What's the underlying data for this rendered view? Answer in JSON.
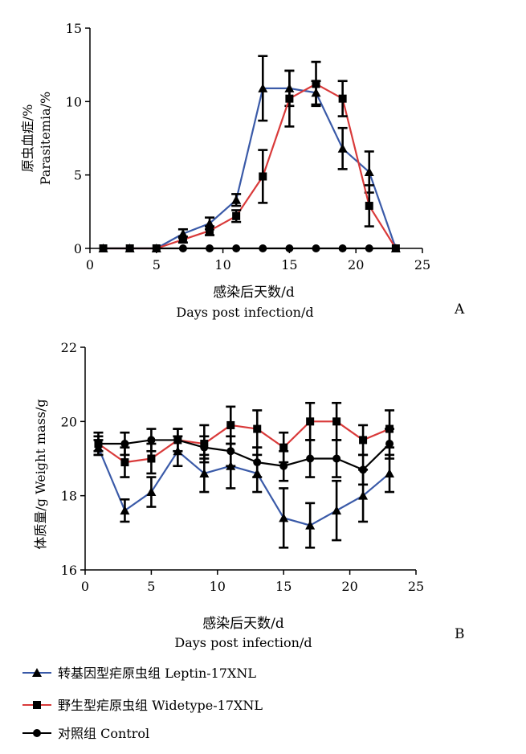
{
  "chart_data": [
    {
      "type": "line",
      "panel_label": "A",
      "xlabel_cn": "感染后天数/d",
      "xlabel_en": "Days post infection/d",
      "ylabel_cn": "原虫血症/%",
      "ylabel_en": "Parasitemia/%",
      "xlim": [
        0,
        25
      ],
      "ylim": [
        0,
        15
      ],
      "xticks": [
        "0",
        "5",
        "10",
        "15",
        "20",
        "25"
      ],
      "yticks": [
        "0",
        "5",
        "10",
        "15"
      ],
      "grid": false,
      "series": [
        {
          "name": "转基因型疟原虫组 Leptin-17XNL",
          "color": "#3a5aa8",
          "marker": "triangle",
          "x": [
            1,
            3,
            5,
            7,
            9,
            11,
            13,
            15,
            17,
            19,
            21,
            23
          ],
          "y": [
            0,
            0,
            0,
            1.0,
            1.7,
            3.3,
            10.9,
            10.9,
            10.6,
            6.8,
            5.2,
            0
          ],
          "err": [
            0,
            0,
            0,
            0.3,
            0.4,
            0.4,
            2.2,
            1.2,
            0.8,
            1.4,
            1.4,
            0
          ]
        },
        {
          "name": "野生型疟原虫组 Widetype-17XNL",
          "color": "#d93a3a",
          "marker": "square",
          "x": [
            1,
            3,
            5,
            7,
            9,
            11,
            13,
            15,
            17,
            19,
            21,
            23
          ],
          "y": [
            0,
            0,
            0,
            0.6,
            1.2,
            2.2,
            4.9,
            10.2,
            11.2,
            10.2,
            2.9,
            0
          ],
          "err": [
            0,
            0,
            0,
            0.2,
            0.3,
            0.4,
            1.8,
            1.9,
            1.5,
            1.2,
            1.4,
            0
          ]
        },
        {
          "name": "对照组 Control",
          "color": "#000000",
          "marker": "circle",
          "x": [
            1,
            3,
            5,
            7,
            9,
            11,
            13,
            15,
            17,
            19,
            21,
            23
          ],
          "y": [
            0,
            0,
            0,
            0,
            0,
            0,
            0,
            0,
            0,
            0,
            0,
            0
          ],
          "err": [
            0,
            0,
            0,
            0,
            0,
            0,
            0,
            0,
            0,
            0,
            0,
            0
          ]
        }
      ]
    },
    {
      "type": "line",
      "panel_label": "B",
      "xlabel_cn": "感染后天数/d",
      "xlabel_en": "Days post infection/d",
      "ylabel": "体质量/g Weight mass/g",
      "xlim": [
        0,
        25
      ],
      "ylim": [
        16,
        22
      ],
      "xticks": [
        "0",
        "5",
        "10",
        "15",
        "20",
        "25"
      ],
      "yticks": [
        "16",
        "18",
        "20",
        "22"
      ],
      "grid": false,
      "series": [
        {
          "name": "转基因型疟原虫组 Leptin-17XNL",
          "color": "#3a5aa8",
          "marker": "triangle",
          "x": [
            1,
            3,
            5,
            7,
            9,
            11,
            13,
            15,
            17,
            19,
            21,
            23
          ],
          "y": [
            19.3,
            17.6,
            18.1,
            19.2,
            18.6,
            18.8,
            18.6,
            17.4,
            17.2,
            17.6,
            18.0,
            18.6
          ],
          "err": [
            0.2,
            0.3,
            0.4,
            0.4,
            0.5,
            0.6,
            0.5,
            0.8,
            0.6,
            0.8,
            0.7,
            0.5
          ]
        },
        {
          "name": "野生型疟原虫组 Widetype-17XNL",
          "color": "#d93a3a",
          "marker": "square",
          "x": [
            1,
            3,
            5,
            7,
            9,
            11,
            13,
            15,
            17,
            19,
            21,
            23
          ],
          "y": [
            19.4,
            18.9,
            19.0,
            19.5,
            19.4,
            19.9,
            19.8,
            19.3,
            20.0,
            20.0,
            19.5,
            19.8
          ],
          "err": [
            0.3,
            0.4,
            0.4,
            0.3,
            0.5,
            0.5,
            0.5,
            0.4,
            0.5,
            0.5,
            0.4,
            0.5
          ]
        },
        {
          "name": "对照组 Control",
          "color": "#000000",
          "marker": "circle",
          "x": [
            1,
            3,
            5,
            7,
            9,
            11,
            13,
            15,
            17,
            19,
            21,
            23
          ],
          "y": [
            19.4,
            19.4,
            19.5,
            19.5,
            19.3,
            19.2,
            18.9,
            18.8,
            19.0,
            19.0,
            18.7,
            19.4
          ],
          "err": [
            0.2,
            0.3,
            0.3,
            0.3,
            0.3,
            0.4,
            0.4,
            0.4,
            0.5,
            0.5,
            0.4,
            0.4
          ]
        }
      ]
    }
  ],
  "legend": {
    "placement": "bottom-left",
    "items": [
      {
        "label": "转基因型疟原虫组  Leptin-17XNL",
        "color": "#3a5aa8",
        "marker": "triangle"
      },
      {
        "label": "野生型疟原虫组  Widetype-17XNL",
        "color": "#d93a3a",
        "marker": "square"
      },
      {
        "label": "对照组  Control",
        "color": "#000000",
        "marker": "circle"
      }
    ]
  }
}
